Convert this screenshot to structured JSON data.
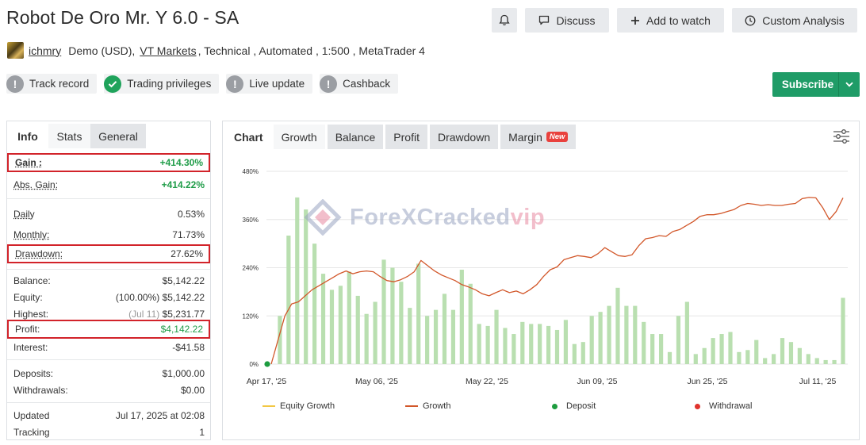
{
  "header": {
    "title": "Robot De Oro Mr. Y 6.0 - SA",
    "discuss": "Discuss",
    "add_to_watch": "Add to watch",
    "custom_analysis": "Custom Analysis"
  },
  "meta": {
    "username": "ichmry",
    "account": "Demo (USD),",
    "broker": "VT Markets",
    "details": ", Technical , Automated , 1:500 , MetaTrader 4"
  },
  "badges": [
    {
      "label": "Track record",
      "icon": "exclamation-icon",
      "state": "grey"
    },
    {
      "label": "Trading privileges",
      "icon": "check-icon",
      "state": "green"
    },
    {
      "label": "Live update",
      "icon": "exclamation-icon",
      "state": "grey"
    },
    {
      "label": "Cashback",
      "icon": "exclamation-icon",
      "state": "grey"
    }
  ],
  "subscribe": {
    "label": "Subscribe"
  },
  "left_tabs": {
    "info": "Info",
    "stats": "Stats",
    "general": "General"
  },
  "stats": {
    "gain": {
      "k": "Gain :",
      "v": "+414.30%"
    },
    "abs_gain": {
      "k": "Abs. Gain:",
      "v": "+414.22%"
    },
    "daily": {
      "k": "Daily",
      "v": "0.53%"
    },
    "monthly": {
      "k": "Monthly:",
      "v": "71.73%"
    },
    "drawdown": {
      "k": "Drawdown:",
      "v": "27.62%"
    },
    "balance": {
      "k": "Balance:",
      "v": "$5,142.22"
    },
    "equity": {
      "k": "Equity:",
      "pct": "(100.00%)",
      "v": "$5,142.22"
    },
    "highest": {
      "k": "Highest:",
      "date": "(Jul 11)",
      "v": "$5,231.77"
    },
    "profit": {
      "k": "Profit:",
      "v": "$4,142.22"
    },
    "interest": {
      "k": "Interest:",
      "v": "-$41.58"
    },
    "deposits": {
      "k": "Deposits:",
      "v": "$1,000.00"
    },
    "withdrawals": {
      "k": "Withdrawals:",
      "v": "$0.00"
    },
    "updated": {
      "k": "Updated",
      "v": "Jul 17, 2025 at 02:08"
    },
    "tracking": {
      "k": "Tracking",
      "v": "1"
    }
  },
  "chart_tabs": {
    "chart": "Chart",
    "growth": "Growth",
    "balance": "Balance",
    "profit": "Profit",
    "drawdown": "Drawdown",
    "margin": "Margin",
    "new_badge": "New"
  },
  "watermark": {
    "text": "ForeXCracked",
    "suffix": "vip"
  },
  "colors": {
    "growth_line": "#d2572a",
    "equity_line": "#f2c744",
    "bars": "#b9dfb0",
    "deposit": "#1d9c3f",
    "withdrawal": "#e0332d",
    "subscribe": "#1f9c67"
  },
  "chart_data": {
    "type": "bar+line",
    "y_ticks": [
      "480%",
      "360%",
      "240%",
      "120%",
      "0%"
    ],
    "ylim": [
      0,
      480
    ],
    "x_ticks": [
      "Apr 17, '25",
      "May 06, '25",
      "May 22, '25",
      "Jun 09, '25",
      "Jun 25, '25",
      "Jul 11, '25"
    ],
    "legend": [
      "Equity Growth",
      "Growth",
      "Deposit",
      "Withdrawal"
    ],
    "growth_line": [
      0,
      60,
      120,
      150,
      155,
      170,
      185,
      195,
      205,
      215,
      225,
      232,
      225,
      230,
      232,
      230,
      218,
      208,
      205,
      210,
      218,
      230,
      258,
      245,
      232,
      222,
      215,
      208,
      198,
      192,
      185,
      175,
      170,
      178,
      185,
      178,
      182,
      175,
      185,
      198,
      218,
      235,
      242,
      260,
      265,
      270,
      268,
      265,
      275,
      290,
      280,
      270,
      268,
      272,
      295,
      312,
      315,
      320,
      318,
      330,
      335,
      345,
      355,
      368,
      372,
      372,
      375,
      380,
      385,
      395,
      400,
      398,
      395,
      397,
      395,
      395,
      398,
      400,
      412,
      415,
      414,
      390,
      360,
      380,
      414
    ],
    "bars": [
      0,
      120,
      320,
      415,
      385,
      300,
      225,
      185,
      195,
      230,
      170,
      125,
      155,
      260,
      240,
      205,
      140,
      250,
      120,
      135,
      175,
      135,
      235,
      200,
      100,
      95,
      135,
      90,
      75,
      105,
      100,
      100,
      95,
      85,
      110,
      50,
      55,
      120,
      130,
      145,
      190,
      145,
      145,
      105,
      75,
      75,
      30,
      120,
      155,
      25,
      40,
      65,
      75,
      80,
      30,
      35,
      60,
      15,
      25,
      65,
      55,
      40,
      25,
      15,
      10,
      10,
      165
    ]
  }
}
